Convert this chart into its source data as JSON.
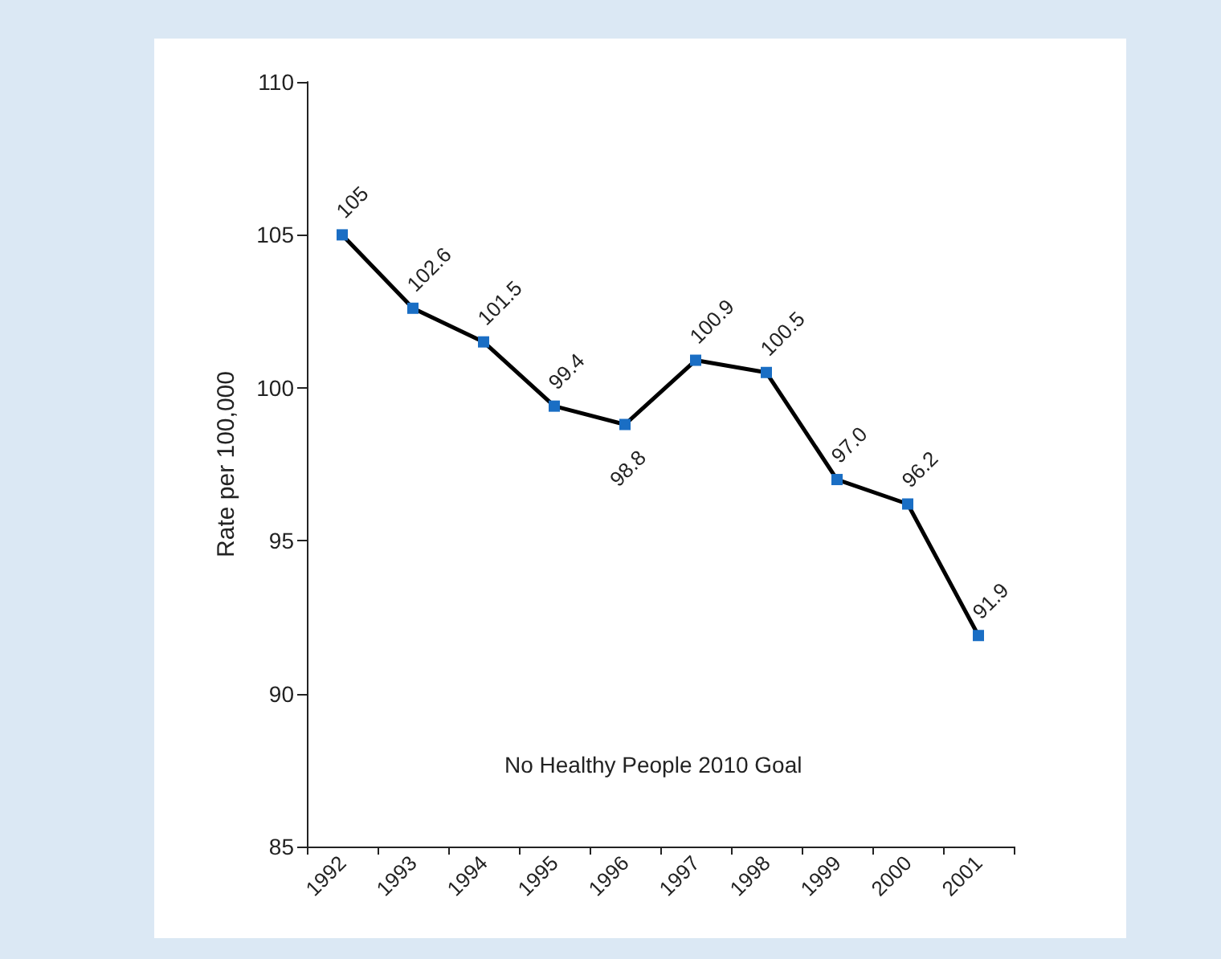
{
  "chart_data": {
    "type": "line",
    "ylabel": "Rate per 100,000",
    "categories": [
      "1992",
      "1993",
      "1994",
      "1995",
      "1996",
      "1997",
      "1998",
      "1999",
      "2000",
      "2001"
    ],
    "series": [
      {
        "color": "#000000",
        "values": [
          105,
          102.6,
          101.5,
          99.4,
          98.8,
          100.9,
          100.5,
          97.0,
          96.2,
          91.9
        ],
        "value_labels": [
          "105",
          "102.6",
          "101.5",
          "99.4",
          "98.8",
          "100.9",
          "100.5",
          "97.0",
          "96.2",
          "91.9"
        ]
      }
    ],
    "ylim": [
      85,
      110
    ],
    "yticks": [
      85,
      90,
      95,
      100,
      105,
      110
    ],
    "grid": false,
    "marker": "square",
    "line_style": "solid",
    "annotations": [
      "No Healthy People 2010 Goal"
    ]
  }
}
